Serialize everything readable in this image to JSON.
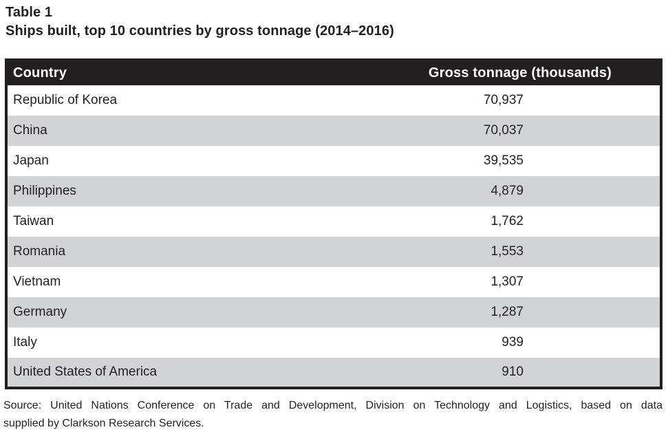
{
  "caption": {
    "label": "Table 1",
    "title": "Ships built, top 10 countries by gross tonnage (2014–2016)"
  },
  "table": {
    "columns": [
      "Country",
      "Gross tonnage (thousands)"
    ],
    "rows": [
      {
        "country": "Republic of Korea",
        "gross_tonnage_thousands": "70,937"
      },
      {
        "country": "China",
        "gross_tonnage_thousands": "70,037"
      },
      {
        "country": "Japan",
        "gross_tonnage_thousands": "39,535"
      },
      {
        "country": "Philippines",
        "gross_tonnage_thousands": "4,879"
      },
      {
        "country": "Taiwan",
        "gross_tonnage_thousands": "1,762"
      },
      {
        "country": "Romania",
        "gross_tonnage_thousands": "1,553"
      },
      {
        "country": "Vietnam",
        "gross_tonnage_thousands": "1,307"
      },
      {
        "country": "Germany",
        "gross_tonnage_thousands": "1,287"
      },
      {
        "country": "Italy",
        "gross_tonnage_thousands": "939"
      },
      {
        "country": "United States of America",
        "gross_tonnage_thousands": "910"
      }
    ]
  },
  "source": {
    "line1": "Source: United Nations Conference on Trade and Development, Division on Technology and Logistics, based on data",
    "line2": "supplied by Clarkson Research Services."
  },
  "colors": {
    "header_bg": "#231f20",
    "row_stripe": "#d1d3d4",
    "row_plain": "#ffffff",
    "header_text": "#ffffff",
    "text": "#231f20"
  }
}
